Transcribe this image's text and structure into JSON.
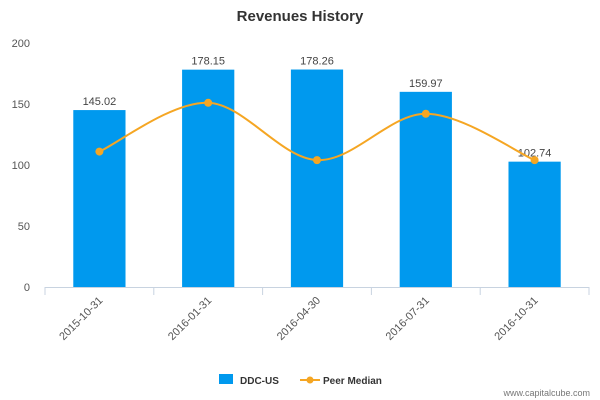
{
  "chart_data": {
    "type": "bar",
    "title": "Revenues History",
    "xlabel": "",
    "ylabel": "",
    "ylim": [
      0,
      200
    ],
    "yticks": [
      0,
      50,
      100,
      150,
      200
    ],
    "grid": false,
    "legend_placement": "bottom-center",
    "categories": [
      "2015-10-31",
      "2016-01-31",
      "2016-04-30",
      "2016-07-31",
      "2016-10-31"
    ],
    "series": [
      {
        "name": "DDC-US",
        "type": "bar",
        "color": "#0099ee",
        "values": [
          145.02,
          178.15,
          178.26,
          159.97,
          102.74
        ],
        "labels": [
          "145.02",
          "178.15",
          "178.26",
          "159.97",
          "102.74"
        ]
      },
      {
        "name": "Peer Median",
        "type": "line",
        "color": "#f5a623",
        "values": [
          111,
          151,
          104,
          142,
          104
        ]
      }
    ]
  },
  "watermark": "www.capitalcube.com"
}
